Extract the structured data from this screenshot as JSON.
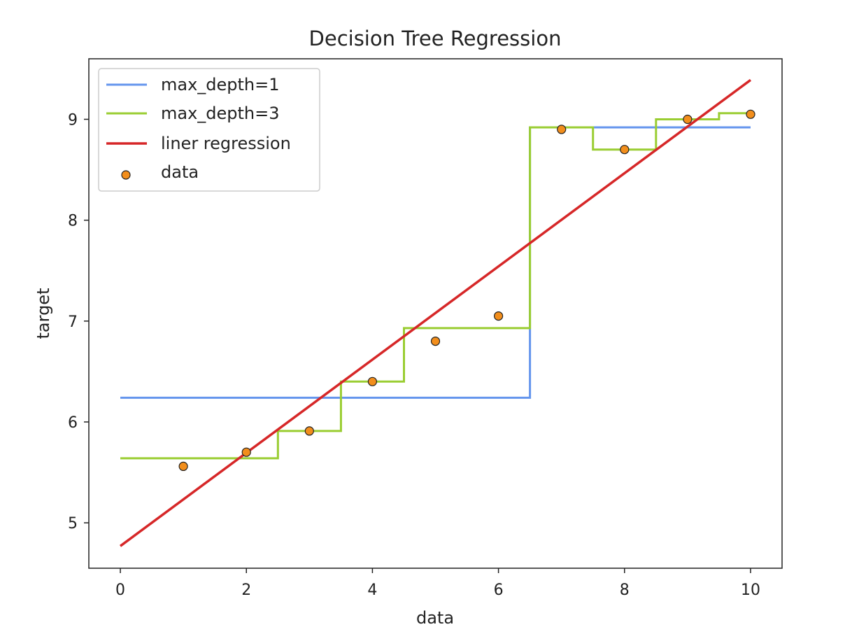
{
  "chart_data": {
    "type": "line",
    "title": "Decision Tree Regression",
    "xlabel": "data",
    "ylabel": "target",
    "xlim": [
      -0.5,
      10.5
    ],
    "ylim": [
      4.55,
      9.6
    ],
    "xticks": [
      0,
      2,
      4,
      6,
      8,
      10
    ],
    "yticks": [
      5,
      6,
      7,
      8,
      9
    ],
    "grid": false,
    "legend_position": "upper-left",
    "series": [
      {
        "name": "max_depth=1",
        "color": "#6495ED",
        "kind": "line",
        "x": [
          0,
          6.5,
          6.5,
          10
        ],
        "y": [
          6.24,
          6.24,
          8.92,
          8.92
        ]
      },
      {
        "name": "max_depth=3",
        "color": "#9ACD32",
        "kind": "line",
        "x": [
          0,
          2.5,
          2.5,
          3.5,
          3.5,
          4.5,
          4.5,
          6.5,
          6.5,
          7.5,
          7.5,
          8.5,
          8.5,
          9.5,
          9.5,
          10
        ],
        "y": [
          5.64,
          5.64,
          5.91,
          5.91,
          6.4,
          6.4,
          6.93,
          6.93,
          8.92,
          8.92,
          8.7,
          8.7,
          9.0,
          9.0,
          9.06,
          9.06
        ]
      },
      {
        "name": "liner regression",
        "color": "#D62728",
        "kind": "line",
        "x": [
          0,
          10
        ],
        "y": [
          4.77,
          9.39
        ]
      },
      {
        "name": "data",
        "color": "#F28E1C",
        "kind": "scatter",
        "x": [
          1,
          2,
          3,
          4,
          5,
          6,
          7,
          8,
          9,
          10
        ],
        "y": [
          5.56,
          5.7,
          5.91,
          6.4,
          6.8,
          7.05,
          8.9,
          8.7,
          9.0,
          9.05
        ]
      }
    ]
  }
}
